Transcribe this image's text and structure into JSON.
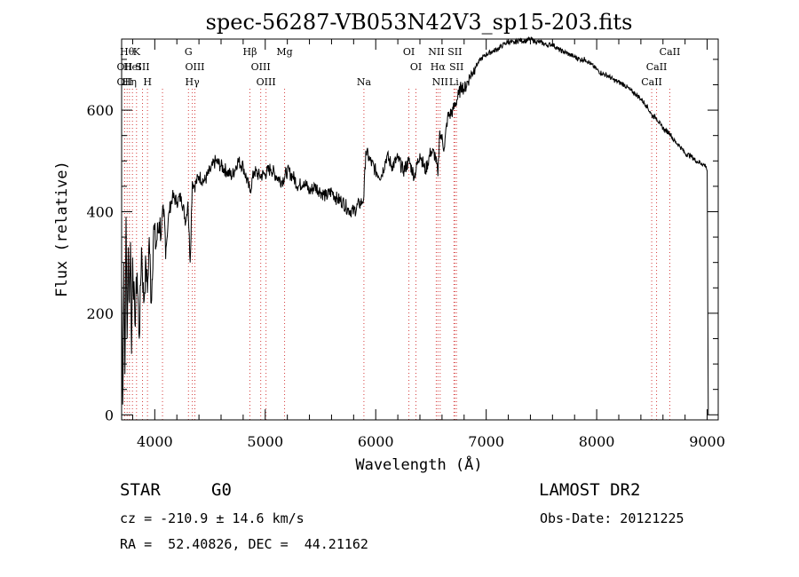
{
  "chart_data": {
    "type": "line",
    "title": "spec-56287-VB053N42V3_sp15-203.fits",
    "xlabel": "Wavelength (Å)",
    "ylabel": "Flux (relative)",
    "xlim": [
      3700,
      9100
    ],
    "ylim": [
      -10,
      740
    ],
    "xticks": [
      4000,
      5000,
      6000,
      7000,
      8000,
      9000
    ],
    "yticks": [
      0,
      200,
      400,
      600
    ],
    "grid": false,
    "series": [
      {
        "x": [
          3700,
          3710,
          3720,
          3730,
          3740,
          3750,
          3760,
          3770,
          3780,
          3790,
          3800,
          3820,
          3840,
          3860,
          3880,
          3900,
          3920,
          3933,
          3950,
          3968,
          3990,
          4010,
          4040,
          4060,
          4080,
          4102,
          4130,
          4160,
          4200,
          4240,
          4280,
          4300,
          4320,
          4340,
          4360,
          4400,
          4450,
          4500,
          4550,
          4600,
          4650,
          4700,
          4750,
          4800,
          4861,
          4900,
          4950,
          5000,
          5050,
          5100,
          5150,
          5200,
          5250,
          5300,
          5350,
          5400,
          5450,
          5500,
          5550,
          5600,
          5650,
          5700,
          5750,
          5800,
          5850,
          5880,
          5893,
          5910,
          5950,
          6000,
          6050,
          6100,
          6150,
          6200,
          6250,
          6300,
          6350,
          6400,
          6450,
          6500,
          6540,
          6563,
          6580,
          6620,
          6650,
          6700,
          6750,
          6780,
          6800,
          6850,
          6900,
          6950,
          7000,
          7050,
          7100,
          7150,
          7200,
          7250,
          7300,
          7350,
          7400,
          7450,
          7500,
          7550,
          7600,
          7650,
          7700,
          7750,
          7800,
          7850,
          7900,
          7950,
          8000,
          8050,
          8100,
          8150,
          8200,
          8250,
          8300,
          8350,
          8400,
          8450,
          8498,
          8542,
          8580,
          8620,
          8662,
          8700,
          8750,
          8800,
          8850,
          8900,
          8950,
          8990,
          9000,
          9010
        ],
        "values": [
          270,
          20,
          300,
          80,
          390,
          150,
          330,
          220,
          340,
          120,
          310,
          180,
          280,
          150,
          330,
          220,
          300,
          240,
          350,
          220,
          370,
          330,
          380,
          360,
          390,
          330,
          400,
          430,
          420,
          430,
          380,
          420,
          300,
          460,
          450,
          470,
          460,
          480,
          500,
          490,
          480,
          470,
          500,
          490,
          440,
          480,
          470,
          475,
          485,
          470,
          460,
          480,
          470,
          450,
          460,
          440,
          450,
          440,
          430,
          440,
          425,
          420,
          405,
          400,
          415,
          420,
          430,
          520,
          500,
          480,
          470,
          510,
          490,
          505,
          480,
          500,
          470,
          515,
          480,
          520,
          510,
          470,
          560,
          525,
          585,
          600,
          630,
          650,
          640,
          665,
          685,
          700,
          710,
          715,
          720,
          728,
          735,
          732,
          738,
          736,
          740,
          735,
          733,
          728,
          730,
          720,
          715,
          710,
          705,
          700,
          700,
          690,
          680,
          672,
          668,
          660,
          655,
          650,
          640,
          632,
          622,
          610,
          590,
          585,
          570,
          560,
          555,
          540,
          530,
          515,
          510,
          500,
          495,
          490,
          480,
          0
        ]
      }
    ],
    "lines": [
      {
        "w": 3727,
        "label": "OII",
        "row": 1
      },
      {
        "w": 3727,
        "label": "OII",
        "row": 2
      },
      {
        "w": 3750,
        "label": "Hθ",
        "row": 0
      },
      {
        "w": 3771,
        "label": "Hη",
        "row": 2
      },
      {
        "w": 3798,
        "label": "HeI",
        "row": 1
      },
      {
        "w": 3835,
        "label": "K",
        "row": 0
      },
      {
        "w": 3889,
        "label": "SII",
        "row": 1
      },
      {
        "w": 3934,
        "label": "H",
        "row": 2
      },
      {
        "w": 4070,
        "label": "",
        "row": 1
      },
      {
        "w": 4305,
        "label": "G",
        "row": 0
      },
      {
        "w": 4340,
        "label": "Hγ",
        "row": 2
      },
      {
        "w": 4363,
        "label": "OIII",
        "row": 1
      },
      {
        "w": 4861,
        "label": "Hβ",
        "row": 0
      },
      {
        "w": 4959,
        "label": "OIII",
        "row": 1
      },
      {
        "w": 5007,
        "label": "OIII",
        "row": 2
      },
      {
        "w": 5175,
        "label": "Mg",
        "row": 0
      },
      {
        "w": 5893,
        "label": "Na",
        "row": 2
      },
      {
        "w": 6300,
        "label": "OI",
        "row": 0
      },
      {
        "w": 6364,
        "label": "OI",
        "row": 1
      },
      {
        "w": 6548,
        "label": "NII",
        "row": 0
      },
      {
        "w": 6563,
        "label": "Hα",
        "row": 1
      },
      {
        "w": 6583,
        "label": "NII",
        "row": 2
      },
      {
        "w": 6716,
        "label": "SII",
        "row": 0
      },
      {
        "w": 6731,
        "label": "SII",
        "row": 1
      },
      {
        "w": 6708,
        "label": "Li",
        "row": 2
      },
      {
        "w": 8498,
        "label": "CaII",
        "row": 2
      },
      {
        "w": 8542,
        "label": "CaII",
        "row": 1
      },
      {
        "w": 8662,
        "label": "CaII",
        "row": 0
      }
    ]
  },
  "info": {
    "class": "STAR",
    "subclass": "G0",
    "survey": "LAMOST DR2",
    "cz": "cz = -210.9 ± 14.6 km/s",
    "obs_date": "Obs-Date: 20121225",
    "radec": "RA =  52.40826, DEC =  44.21162"
  }
}
